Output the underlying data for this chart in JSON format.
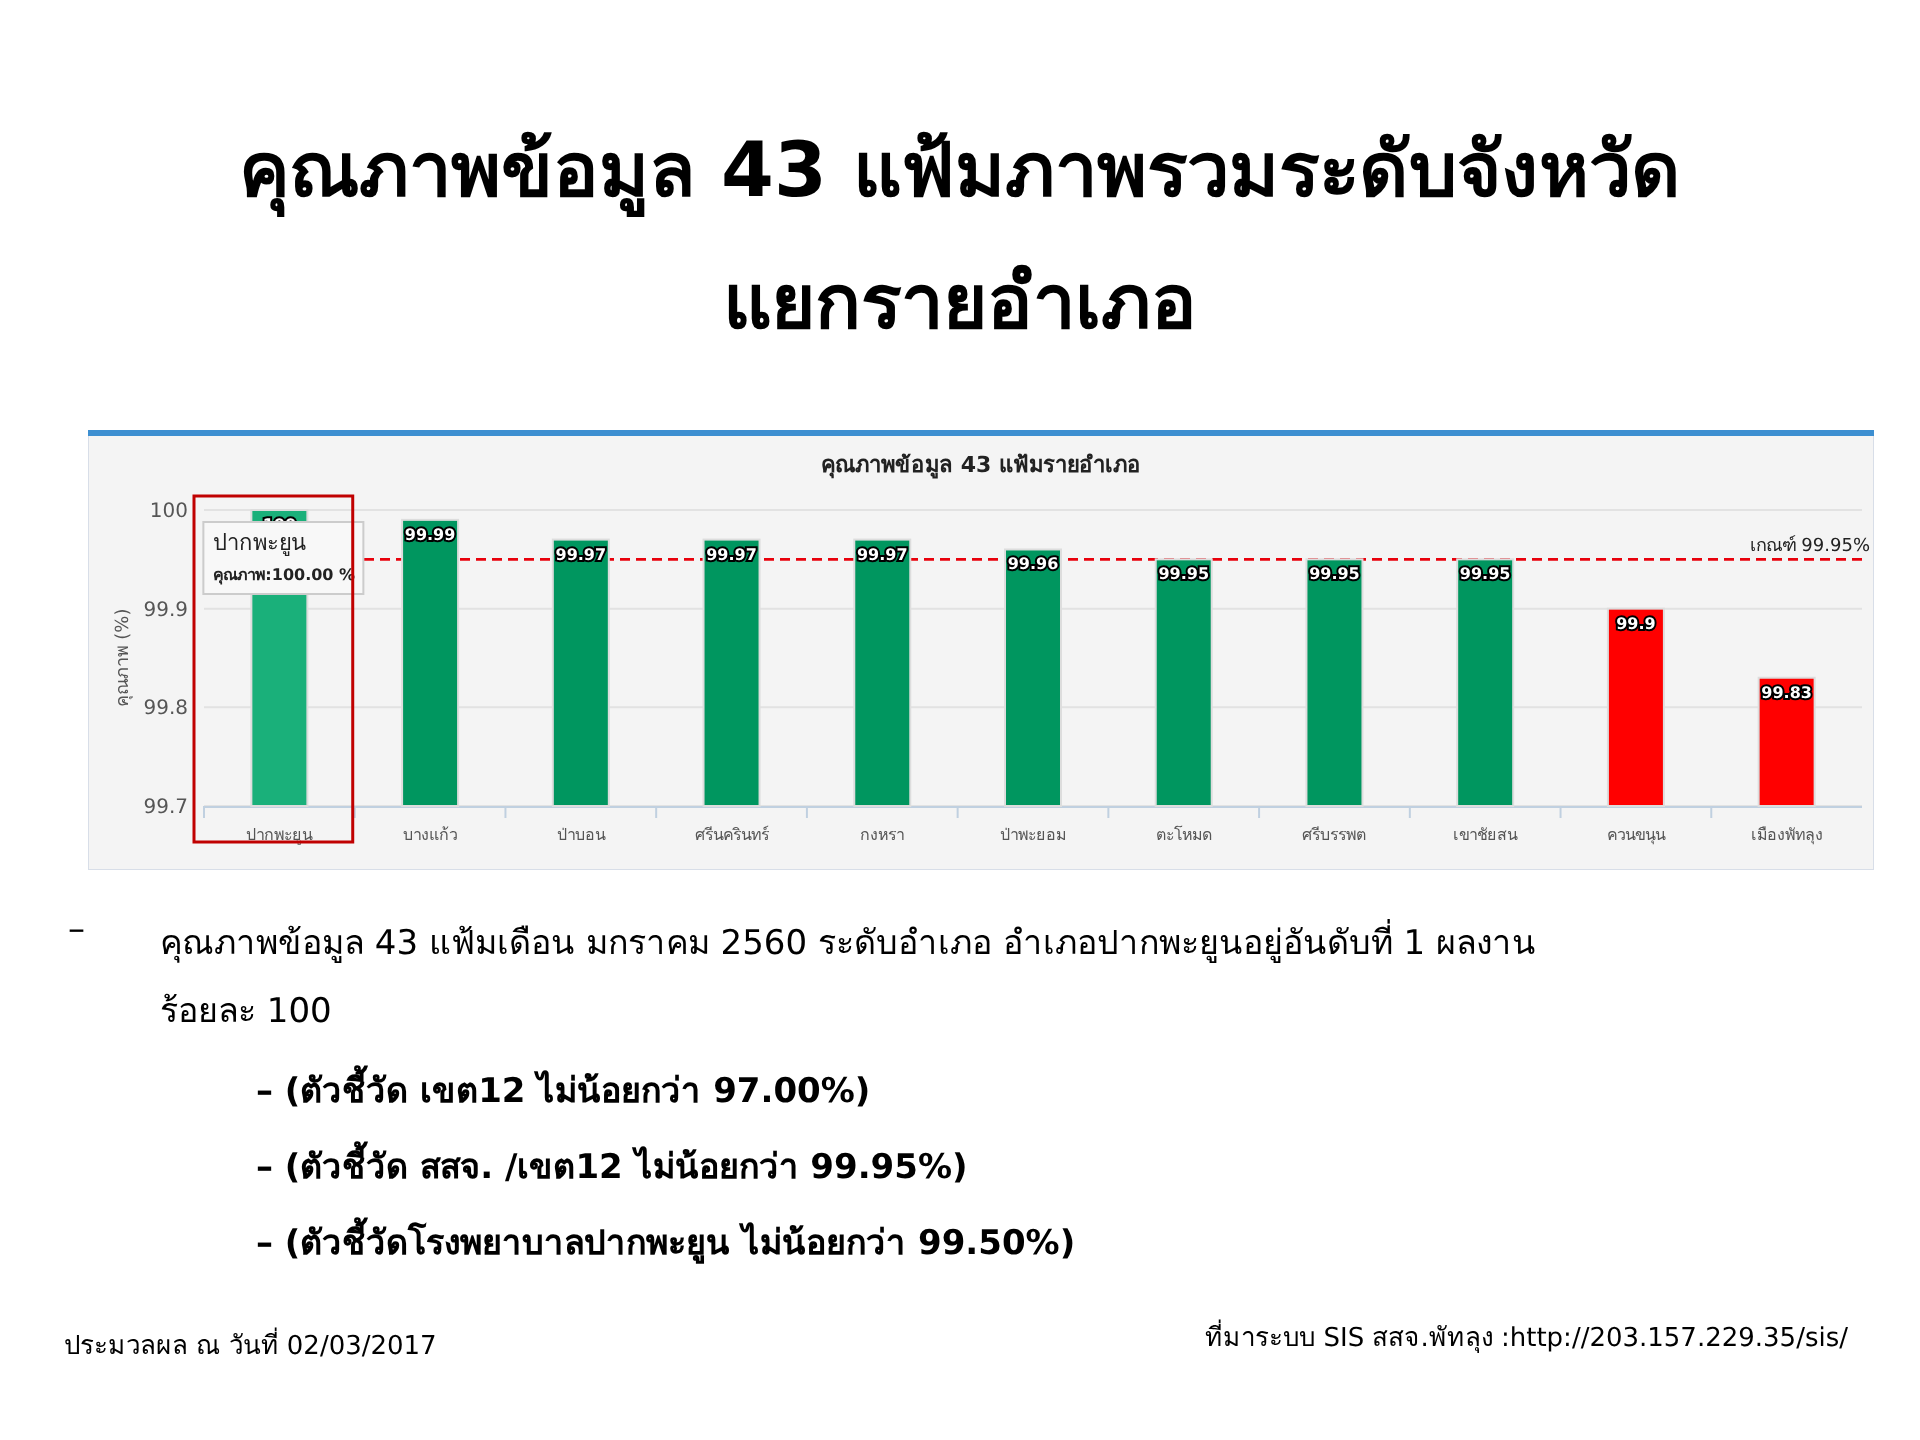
{
  "chart_data": {
    "type": "bar",
    "title": "คุณภาพข้อมูล 43 แฟ้มภาพรวมระดับจังหวัดแยกรายอำเภอ",
    "subtitle": "คุณภาพข้อมูล 43 แฟ้มรายอำเภอ",
    "ylabel": "คุณภาพ (%)",
    "categories": [
      "ปากพะยูน",
      "บางแก้ว",
      "ป่าบอน",
      "ศรีนครินทร์",
      "กงหรา",
      "ป่าพะยอม",
      "ตะโหมด",
      "ศรีบรรพต",
      "เขาชัยสน",
      "ควนขนุน",
      "เมืองพัทลุง"
    ],
    "values": [
      100,
      99.99,
      99.97,
      99.97,
      99.97,
      99.96,
      99.95,
      99.95,
      99.95,
      99.9,
      99.83
    ],
    "colors": [
      "#1ab07a",
      "#00965f",
      "#00965f",
      "#00965f",
      "#00965f",
      "#00965f",
      "#00965f",
      "#00965f",
      "#00965f",
      "#ff0000",
      "#ff0000"
    ],
    "data_labels": true,
    "ylim": [
      99.7,
      100
    ],
    "yticks": [
      99.7,
      99.8,
      99.9,
      100
    ],
    "grid": "y",
    "ref_lines": [
      {
        "axis": "y",
        "value": 99.95,
        "label": "เกณฑ์ 99.95%",
        "color": "#e8000b",
        "line_style": "dashed"
      }
    ],
    "annotations": [
      {
        "text": "ปากพะยูน\nคุณภาพ:100.00 %",
        "x": "ปากพะยูน",
        "y": 100
      },
      "–",
      "คุณภาพข้อมูล 43 แฟ้มเดือน มกราคม 2560 ระดับอำเภอ อำเภอปากพะยูนอยู่อันดับที่ 1 ผลงาน ร้อยละ 100",
      "– (ตัวชี้วัด เขต12 ไม่น้อยกว่า 97.00%)",
      "– (ตัวชี้วัด สสจ. /เขต12 ไม่น้อยกว่า 99.95%)",
      "– (ตัวชี้วัดโรงพยาบาลปากพะยูน ไม่น้อยกว่า 99.50%)",
      "ประมวลผล ณ วันที่ 02/03/2017",
      "ที่มาระบบ SIS สสจ.พัทลุง :http://203.157.229.35/sis/"
    ]
  }
}
